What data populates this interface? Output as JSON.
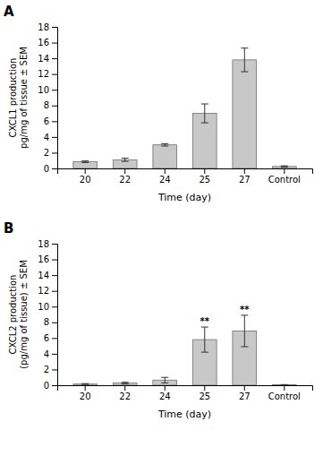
{
  "chart_data": [
    {
      "type": "bar",
      "title": "A",
      "categories": [
        "20",
        "22",
        "24",
        "25",
        "27",
        "Control"
      ],
      "values": [
        0.85,
        1.1,
        3.0,
        7.0,
        13.8,
        0.25
      ],
      "errors": [
        0.1,
        0.2,
        0.15,
        1.2,
        1.5,
        0.08
      ],
      "ylabel": [
        "CXCL1 production",
        "pg/mg of tissue ± SEM"
      ],
      "xlabel": "Time (day)",
      "ylim": [
        0,
        18
      ],
      "yticks": [
        0,
        2,
        4,
        6,
        8,
        10,
        12,
        14,
        16,
        18
      ],
      "color": "#c8c8c8"
    },
    {
      "type": "bar",
      "title": "B",
      "categories": [
        "20",
        "22",
        "24",
        "25",
        "27",
        "Control"
      ],
      "values": [
        0.15,
        0.28,
        0.65,
        5.8,
        6.9,
        0.05
      ],
      "errors": [
        0.05,
        0.1,
        0.35,
        1.6,
        2.0,
        0.03
      ],
      "ylabel": [
        "CXCL2 production",
        "(pg/mg of tissue) ± SEM"
      ],
      "xlabel": "Time (day)",
      "ylim": [
        0,
        18
      ],
      "yticks": [
        0,
        2,
        4,
        6,
        8,
        10,
        12,
        14,
        16,
        18
      ],
      "color": "#c8c8c8",
      "annotations": [
        {
          "category": "25",
          "text": "**"
        },
        {
          "category": "27",
          "text": "**"
        }
      ]
    }
  ]
}
